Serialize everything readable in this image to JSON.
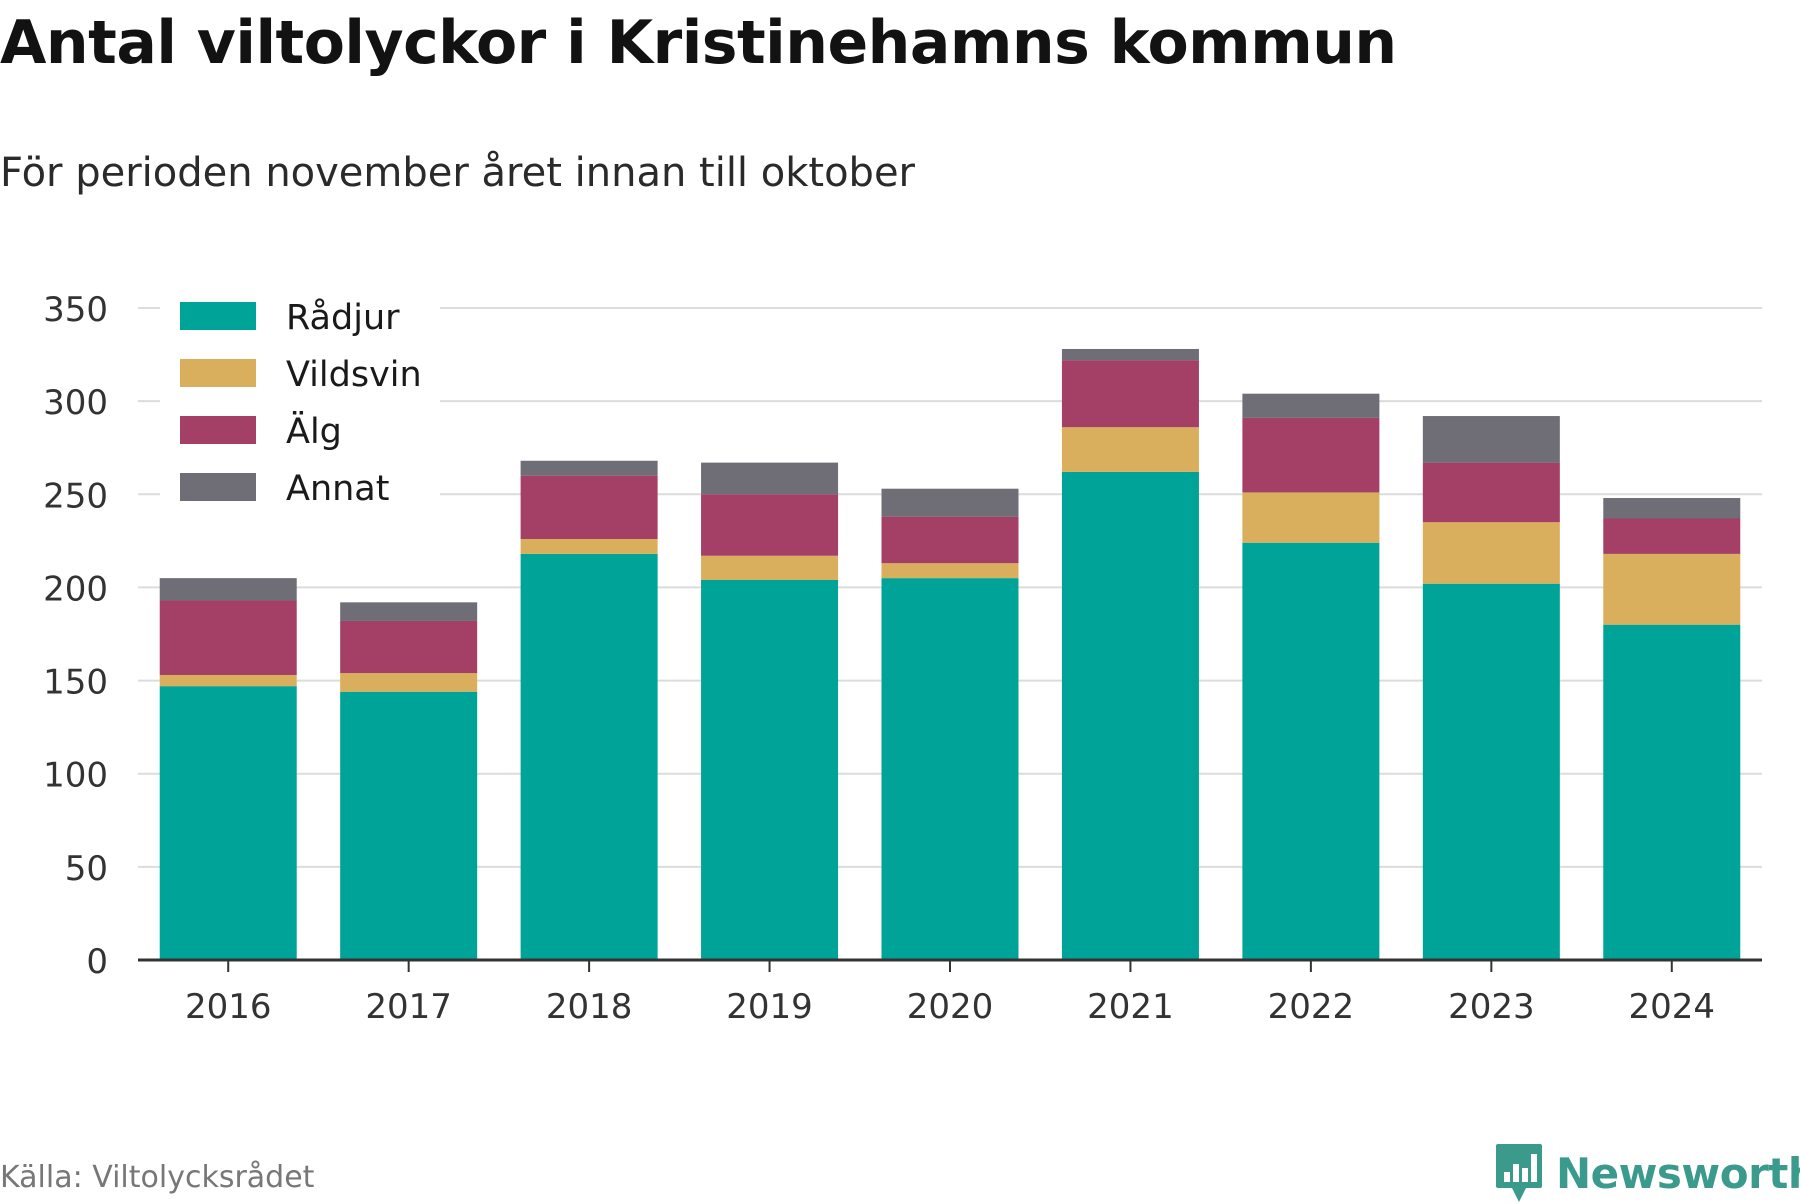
{
  "title": "Antal viltolyckor i Kristinehamns kommun",
  "subtitle": "För perioden november året innan till oktober",
  "source": "Källa: Viltolycksrådet",
  "brand": "Newsworthy",
  "brand_icon": "bar-chart-icon",
  "brand_color": "#3a9a8c",
  "chart_data": {
    "type": "bar",
    "stacked": true,
    "categories": [
      "2016",
      "2017",
      "2018",
      "2019",
      "2020",
      "2021",
      "2022",
      "2023",
      "2024"
    ],
    "series": [
      {
        "name": "Rådjur",
        "color": "#00a398",
        "values": [
          147,
          144,
          218,
          204,
          205,
          262,
          224,
          202,
          180
        ]
      },
      {
        "name": "Vildsvin",
        "color": "#d9ae5c",
        "values": [
          6,
          10,
          8,
          13,
          8,
          24,
          27,
          33,
          38
        ]
      },
      {
        "name": "Älg",
        "color": "#a43f66",
        "values": [
          40,
          28,
          34,
          33,
          25,
          36,
          40,
          32,
          19
        ]
      },
      {
        "name": "Annat",
        "color": "#6f6e76",
        "values": [
          12,
          10,
          8,
          17,
          15,
          6,
          13,
          25,
          11
        ]
      }
    ],
    "ylim": [
      0,
      350
    ],
    "yticks": [
      0,
      50,
      100,
      150,
      200,
      250,
      300,
      350
    ],
    "grid": true,
    "legend": "top-left"
  }
}
